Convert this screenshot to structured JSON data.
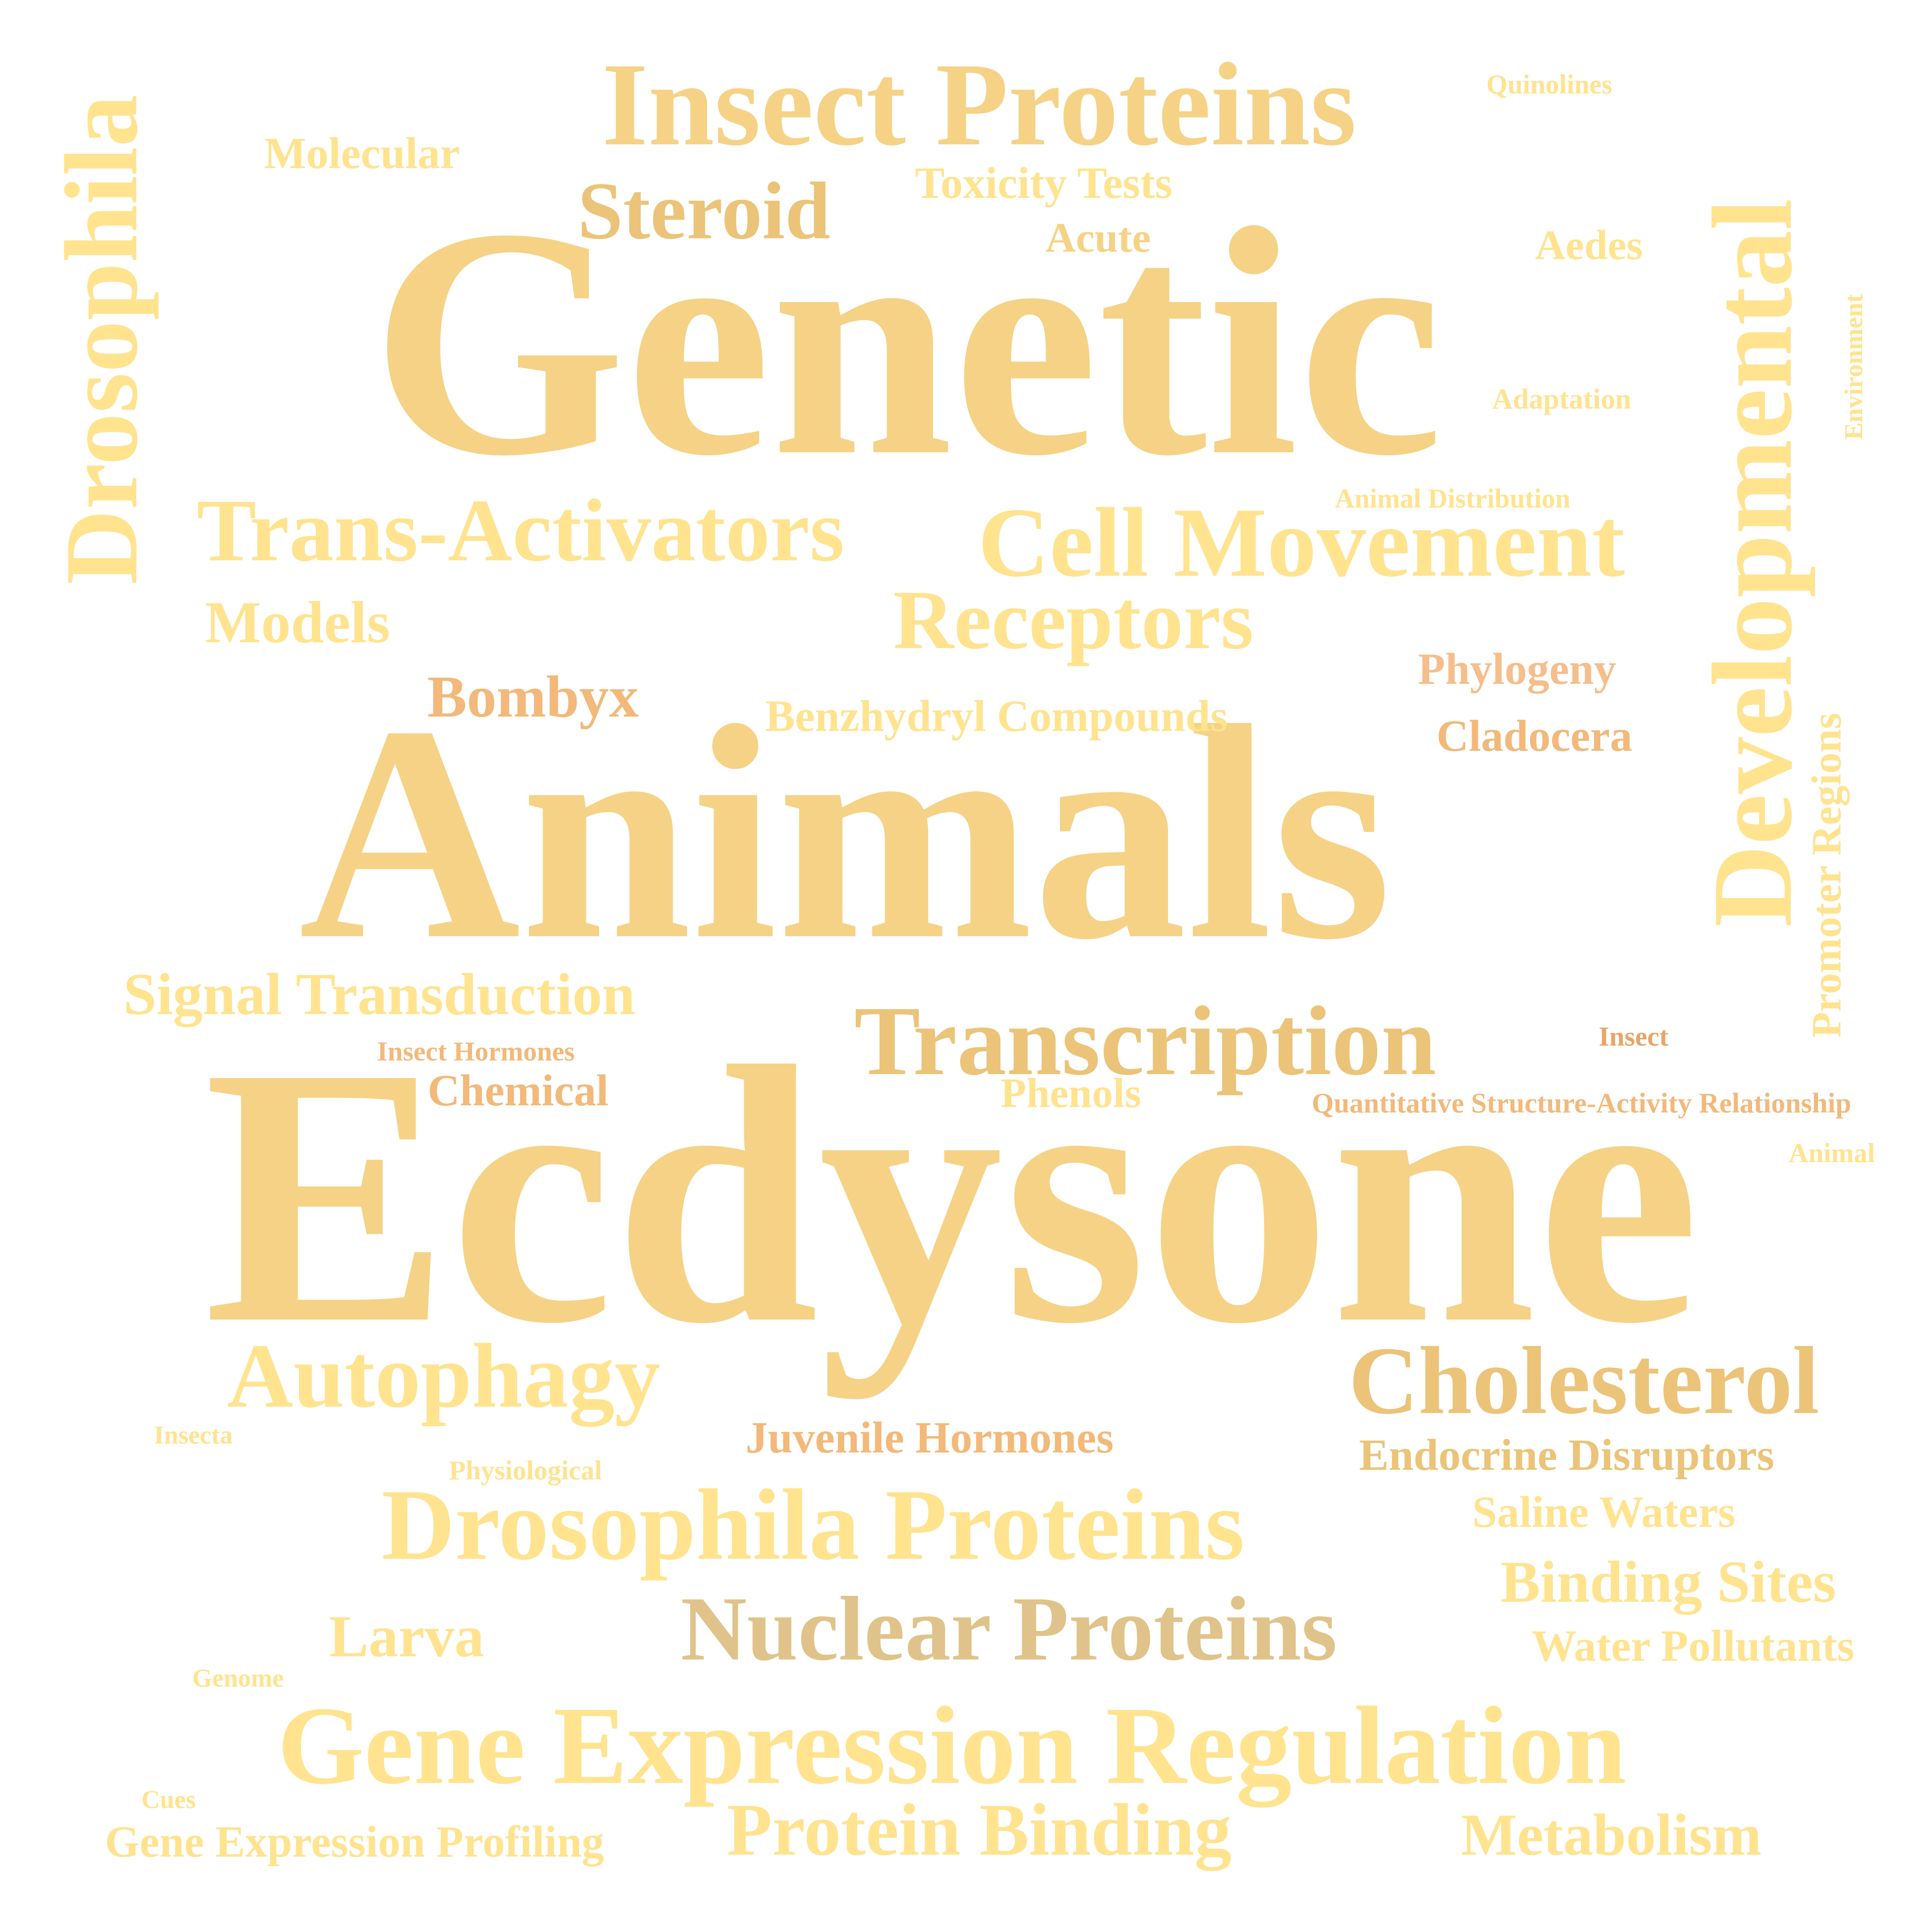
{
  "colors": {
    "pale_yellow": "#FFE38F",
    "light_gold": "#F5D285",
    "gold": "#EBC479",
    "tan": "#E0C38A",
    "apricot": "#F2B97A",
    "orange": "#EBA466",
    "peach": "#F5BE8C"
  },
  "words": [
    {
      "id": "ecdysone",
      "text": "Ecdysone",
      "color": "light_gold"
    },
    {
      "id": "animals",
      "text": "Animals",
      "color": "light_gold"
    },
    {
      "id": "genetic",
      "text": "Genetic",
      "color": "light_gold"
    },
    {
      "id": "gene-expression-regulation",
      "text": "Gene Expression Regulation",
      "color": "pale_yellow"
    },
    {
      "id": "insect-proteins",
      "text": "Insect Proteins",
      "color": "light_gold"
    },
    {
      "id": "developmental",
      "text": "Developmental",
      "color": "pale_yellow"
    },
    {
      "id": "drosophila",
      "text": "Drosophila",
      "color": "pale_yellow"
    },
    {
      "id": "drosophila-proteins",
      "text": "Drosophila Proteins",
      "color": "pale_yellow"
    },
    {
      "id": "transcription",
      "text": "Transcription",
      "color": "gold"
    },
    {
      "id": "cell-movement",
      "text": "Cell Movement",
      "color": "pale_yellow"
    },
    {
      "id": "trans-activators",
      "text": "Trans-Activators",
      "color": "pale_yellow"
    },
    {
      "id": "cholesterol",
      "text": "Cholesterol",
      "color": "gold"
    },
    {
      "id": "nuclear-proteins",
      "text": "Nuclear Proteins",
      "color": "tan"
    },
    {
      "id": "autophagy",
      "text": "Autophagy",
      "color": "pale_yellow"
    },
    {
      "id": "receptors",
      "text": "Receptors",
      "color": "pale_yellow"
    },
    {
      "id": "protein-binding",
      "text": "Protein Binding",
      "color": "pale_yellow"
    },
    {
      "id": "steroid",
      "text": "Steroid",
      "color": "gold"
    },
    {
      "id": "signal-transduction",
      "text": "Signal Transduction",
      "color": "pale_yellow"
    },
    {
      "id": "binding-sites",
      "text": "Binding Sites",
      "color": "pale_yellow"
    },
    {
      "id": "metabolism",
      "text": "Metabolism",
      "color": "pale_yellow"
    },
    {
      "id": "larva",
      "text": "Larva",
      "color": "pale_yellow"
    },
    {
      "id": "bombyx",
      "text": "Bombyx",
      "color": "apricot"
    },
    {
      "id": "models",
      "text": "Models",
      "color": "pale_yellow"
    },
    {
      "id": "juvenile-hormones",
      "text": "Juvenile Hormones",
      "color": "apricot"
    },
    {
      "id": "endocrine-disruptors",
      "text": "Endocrine Disruptors",
      "color": "gold"
    },
    {
      "id": "water-pollutants",
      "text": "Water Pollutants",
      "color": "pale_yellow"
    },
    {
      "id": "promoter-regions",
      "text": "Promoter Regions",
      "color": "pale_yellow"
    },
    {
      "id": "benzhydryl-compounds",
      "text": "Benzhydryl Compounds",
      "color": "pale_yellow"
    },
    {
      "id": "gene-expression-profiling",
      "text": "Gene Expression Profiling",
      "color": "pale_yellow"
    },
    {
      "id": "saline-waters",
      "text": "Saline Waters",
      "color": "pale_yellow"
    },
    {
      "id": "molecular",
      "text": "Molecular",
      "color": "pale_yellow"
    },
    {
      "id": "phylogeny",
      "text": "Phylogeny",
      "color": "peach"
    },
    {
      "id": "cladocera",
      "text": "Cladocera",
      "color": "apricot"
    },
    {
      "id": "chemical",
      "text": "Chemical",
      "color": "apricot"
    },
    {
      "id": "toxicity-tests",
      "text": "Toxicity Tests",
      "color": "pale_yellow"
    },
    {
      "id": "phenols",
      "text": "Phenols",
      "color": "pale_yellow"
    },
    {
      "id": "aedes",
      "text": "Aedes",
      "color": "pale_yellow"
    },
    {
      "id": "acute",
      "text": "Acute",
      "color": "light_gold"
    },
    {
      "id": "quantitative-structure-activity-relationship",
      "text": "Quantitative Structure-Activity Relationship",
      "color": "apricot"
    },
    {
      "id": "adaptation",
      "text": "Adaptation",
      "color": "pale_yellow"
    },
    {
      "id": "insect-hormones",
      "text": "Insect Hormones",
      "color": "apricot"
    },
    {
      "id": "animal-distribution",
      "text": "Animal Distribution",
      "color": "pale_yellow"
    },
    {
      "id": "quinolines",
      "text": "Quinolines",
      "color": "pale_yellow"
    },
    {
      "id": "environment",
      "text": "Environment",
      "color": "pale_yellow"
    },
    {
      "id": "insect",
      "text": "Insect",
      "color": "orange"
    },
    {
      "id": "animal",
      "text": "Animal",
      "color": "pale_yellow"
    },
    {
      "id": "physiological",
      "text": "Physiological",
      "color": "pale_yellow"
    },
    {
      "id": "insecta",
      "text": "Insecta",
      "color": "pale_yellow"
    },
    {
      "id": "genome",
      "text": "Genome",
      "color": "pale_yellow"
    },
    {
      "id": "cues",
      "text": "Cues",
      "color": "pale_yellow"
    }
  ]
}
